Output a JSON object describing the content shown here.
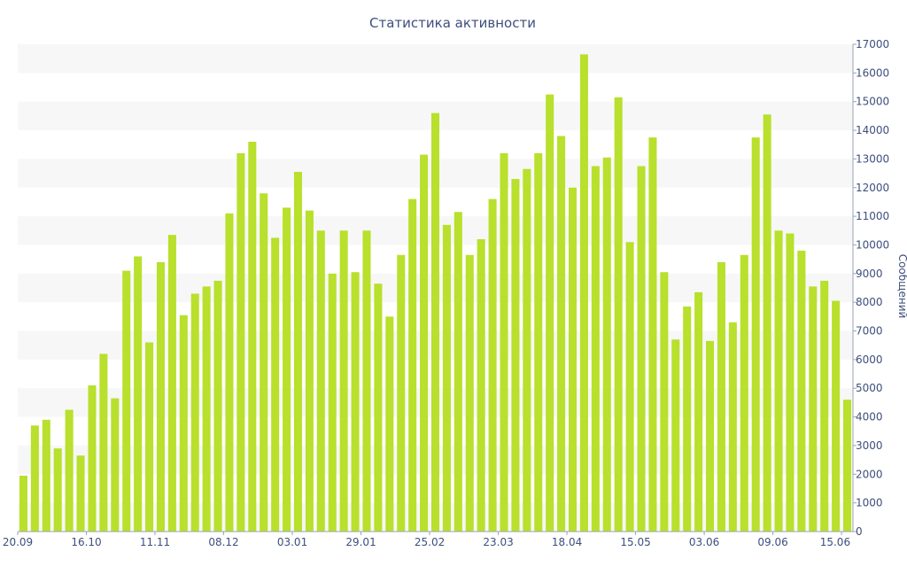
{
  "chart_data": {
    "type": "bar",
    "title": "Статистика активности",
    "ylabel": "Сообщений",
    "xlabel": "",
    "ylim": [
      0,
      17000
    ],
    "y_ticks": [
      0,
      1000,
      2000,
      3000,
      4000,
      5000,
      6000,
      7000,
      8000,
      9000,
      10000,
      11000,
      12000,
      13000,
      14000,
      15000,
      16000,
      17000
    ],
    "y_axis_side": "right",
    "x_tick_labels": [
      "20.09",
      "16.10",
      "11.11",
      "08.12",
      "03.01",
      "29.01",
      "25.02",
      "23.03",
      "18.04",
      "15.05",
      "03.06",
      "09.06",
      "15.06"
    ],
    "x_tick_every": 6,
    "grid": "alternating horizontal bands",
    "values": [
      1950,
      3700,
      3900,
      2900,
      4250,
      2650,
      5100,
      6200,
      4650,
      9100,
      9600,
      6600,
      9400,
      10350,
      7550,
      8300,
      8550,
      8750,
      11100,
      13200,
      13600,
      11800,
      10250,
      11300,
      12550,
      11200,
      10500,
      9000,
      10500,
      9050,
      10500,
      8650,
      7500,
      9650,
      11600,
      13150,
      14600,
      10700,
      11150,
      9650,
      10200,
      11600,
      13200,
      12300,
      12650,
      13200,
      15250,
      13800,
      12000,
      16650,
      12750,
      13050,
      15150,
      10100,
      12750,
      13750,
      9050,
      6700,
      7850,
      8350,
      6650,
      9400,
      7300,
      9650,
      13750,
      14550,
      10500,
      10400,
      9800,
      8550,
      8750,
      8050,
      4600
    ],
    "bar_color": "#b8e02c"
  }
}
